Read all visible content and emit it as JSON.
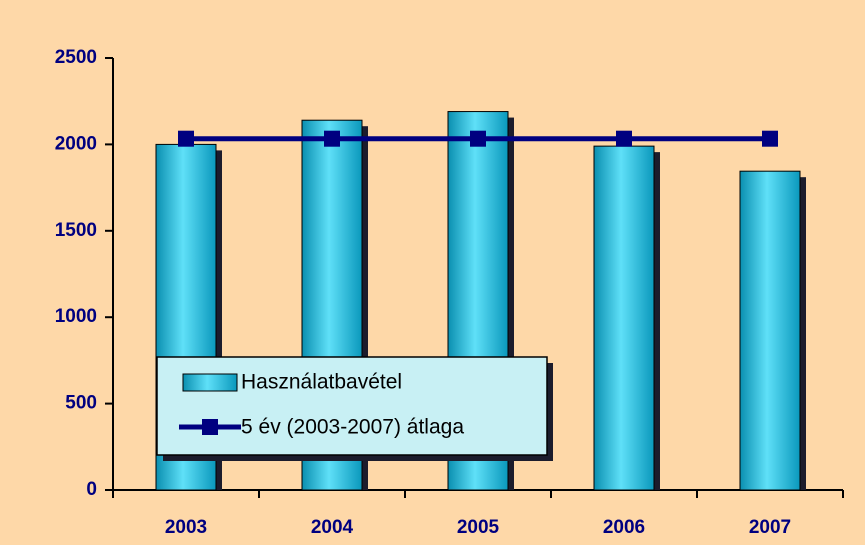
{
  "chart_data": {
    "type": "bar",
    "categories": [
      "2003",
      "2004",
      "2005",
      "2006",
      "2007"
    ],
    "series": [
      {
        "name": "Használatbavétel",
        "type": "bar",
        "color": "#19b4d8",
        "values": [
          2000,
          2140,
          2190,
          1990,
          1845
        ]
      },
      {
        "name": "5 év (2003-2007) átlaga",
        "type": "line",
        "color": "#000080",
        "values": [
          2033,
          2033,
          2033,
          2033,
          2033
        ]
      }
    ],
    "ylim": [
      0,
      2500
    ],
    "yticks": [
      0,
      500,
      1000,
      1500,
      2000,
      2500
    ],
    "grid": false,
    "legend": "bottom-left"
  }
}
